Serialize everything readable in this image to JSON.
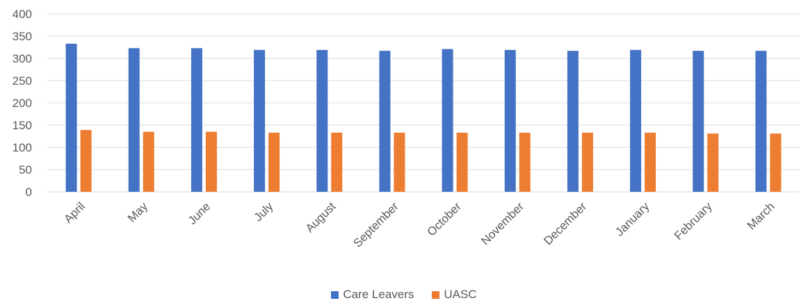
{
  "chart_data": {
    "type": "bar",
    "categories": [
      "April",
      "May",
      "June",
      "July",
      "August",
      "September",
      "October",
      "November",
      "December",
      "January",
      "February",
      "March"
    ],
    "series": [
      {
        "name": "Care Leavers",
        "color": "#4472C4",
        "values": [
          333,
          323,
          323,
          319,
          319,
          317,
          321,
          319,
          317,
          319,
          317,
          317
        ]
      },
      {
        "name": "UASC",
        "color": "#ED7D31",
        "values": [
          139,
          135,
          135,
          133,
          133,
          133,
          133,
          133,
          133,
          133,
          131,
          131
        ]
      }
    ],
    "ylim": [
      0,
      400
    ],
    "yticks": [
      "0",
      "50",
      "100",
      "150",
      "200",
      "250",
      "300",
      "350",
      "400"
    ],
    "grid": true,
    "legend_position": "bottom"
  }
}
